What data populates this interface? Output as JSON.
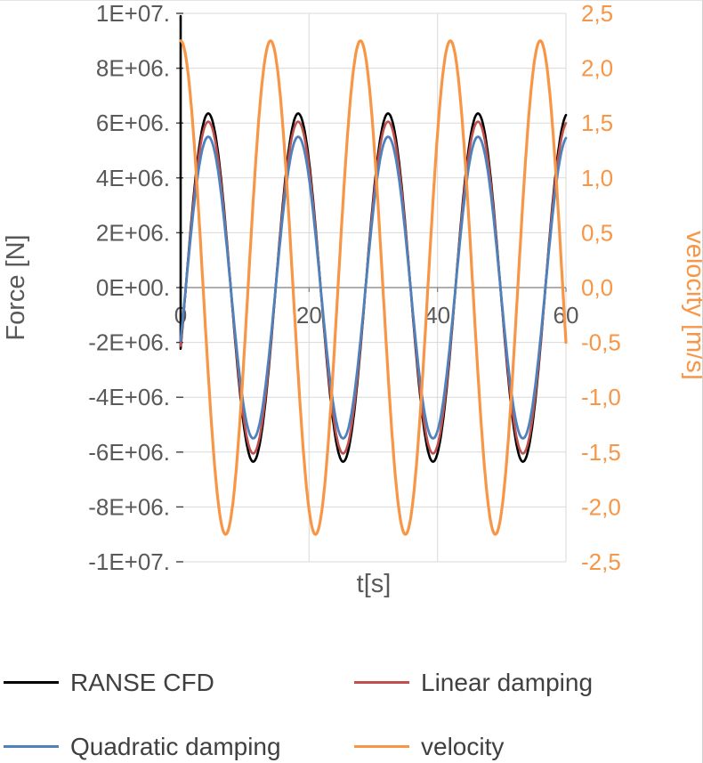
{
  "chart_data": {
    "type": "line",
    "title": "",
    "xlabel": "t[s]",
    "gridline_color": "#d9d9d9",
    "x_axis": {
      "min": 0,
      "max": 60,
      "ticks": [
        0,
        20,
        40,
        60
      ],
      "tick_labels": [
        "0",
        "20",
        "40",
        "60"
      ],
      "gridline_ticks": [
        20,
        40,
        60
      ],
      "color": "#595959"
    },
    "left_axis": {
      "title": "Force [N]",
      "min": -10000000,
      "max": 10000000,
      "ticks": [
        10000000,
        8000000,
        6000000,
        4000000,
        2000000,
        0,
        -2000000,
        -4000000,
        -6000000,
        -8000000,
        -10000000
      ],
      "tick_labels": [
        "1E+07.",
        "8E+06.",
        "6E+06.",
        "4E+06.",
        "2E+06.",
        "0E+00.",
        "-2E+06.",
        "-4E+06.",
        "-6E+06.",
        "-8E+06.",
        "-1E+07."
      ],
      "color": "#595959"
    },
    "right_axis": {
      "title": "velocity [m/s]",
      "min": -2.5,
      "max": 2.5,
      "ticks": [
        2.5,
        2.0,
        1.5,
        1.0,
        0.5,
        0.0,
        -0.5,
        -1.0,
        -1.5,
        -2.0,
        -2.5
      ],
      "tick_labels": [
        "2,5",
        "2,0",
        "1,5",
        "1,0",
        "0,5",
        "0,0",
        "-0,5",
        "-1,0",
        "-1,5",
        "-2,0",
        "-2,5"
      ],
      "color": "#f79646"
    },
    "series": [
      {
        "name": "RANSE CFD",
        "axis": "left",
        "color": "#000000",
        "waveform": "sine",
        "amplitude": 6350000,
        "period_s": 14,
        "phase_offset_s": 0.8,
        "start_spike_value": 9900000,
        "stroke_width": 2.6
      },
      {
        "name": "Linear damping",
        "axis": "left",
        "color": "#c0504d",
        "waveform": "sine",
        "amplitude": 6050000,
        "period_s": 14,
        "phase_offset_s": 0.8,
        "stroke_width": 2.6
      },
      {
        "name": "Quadratic damping",
        "axis": "left",
        "color": "#4f81bd",
        "waveform": "sine",
        "amplitude": 5500000,
        "period_s": 14,
        "phase_offset_s": 0.8,
        "stroke_width": 2.8
      },
      {
        "name": "velocity",
        "axis": "right",
        "color": "#f79646",
        "waveform": "cosine",
        "amplitude": 2.25,
        "period_s": 14,
        "phase_offset_s": 0,
        "stroke_width": 3.2
      }
    ]
  },
  "legend": {
    "rows": [
      [
        {
          "label": "RANSE CFD",
          "color": "#000000"
        },
        {
          "label": "Linear damping",
          "color": "#c0504d"
        }
      ],
      [
        {
          "label": "Quadratic damping",
          "color": "#4f81bd"
        },
        {
          "label": "velocity",
          "color": "#f79646"
        }
      ]
    ]
  }
}
